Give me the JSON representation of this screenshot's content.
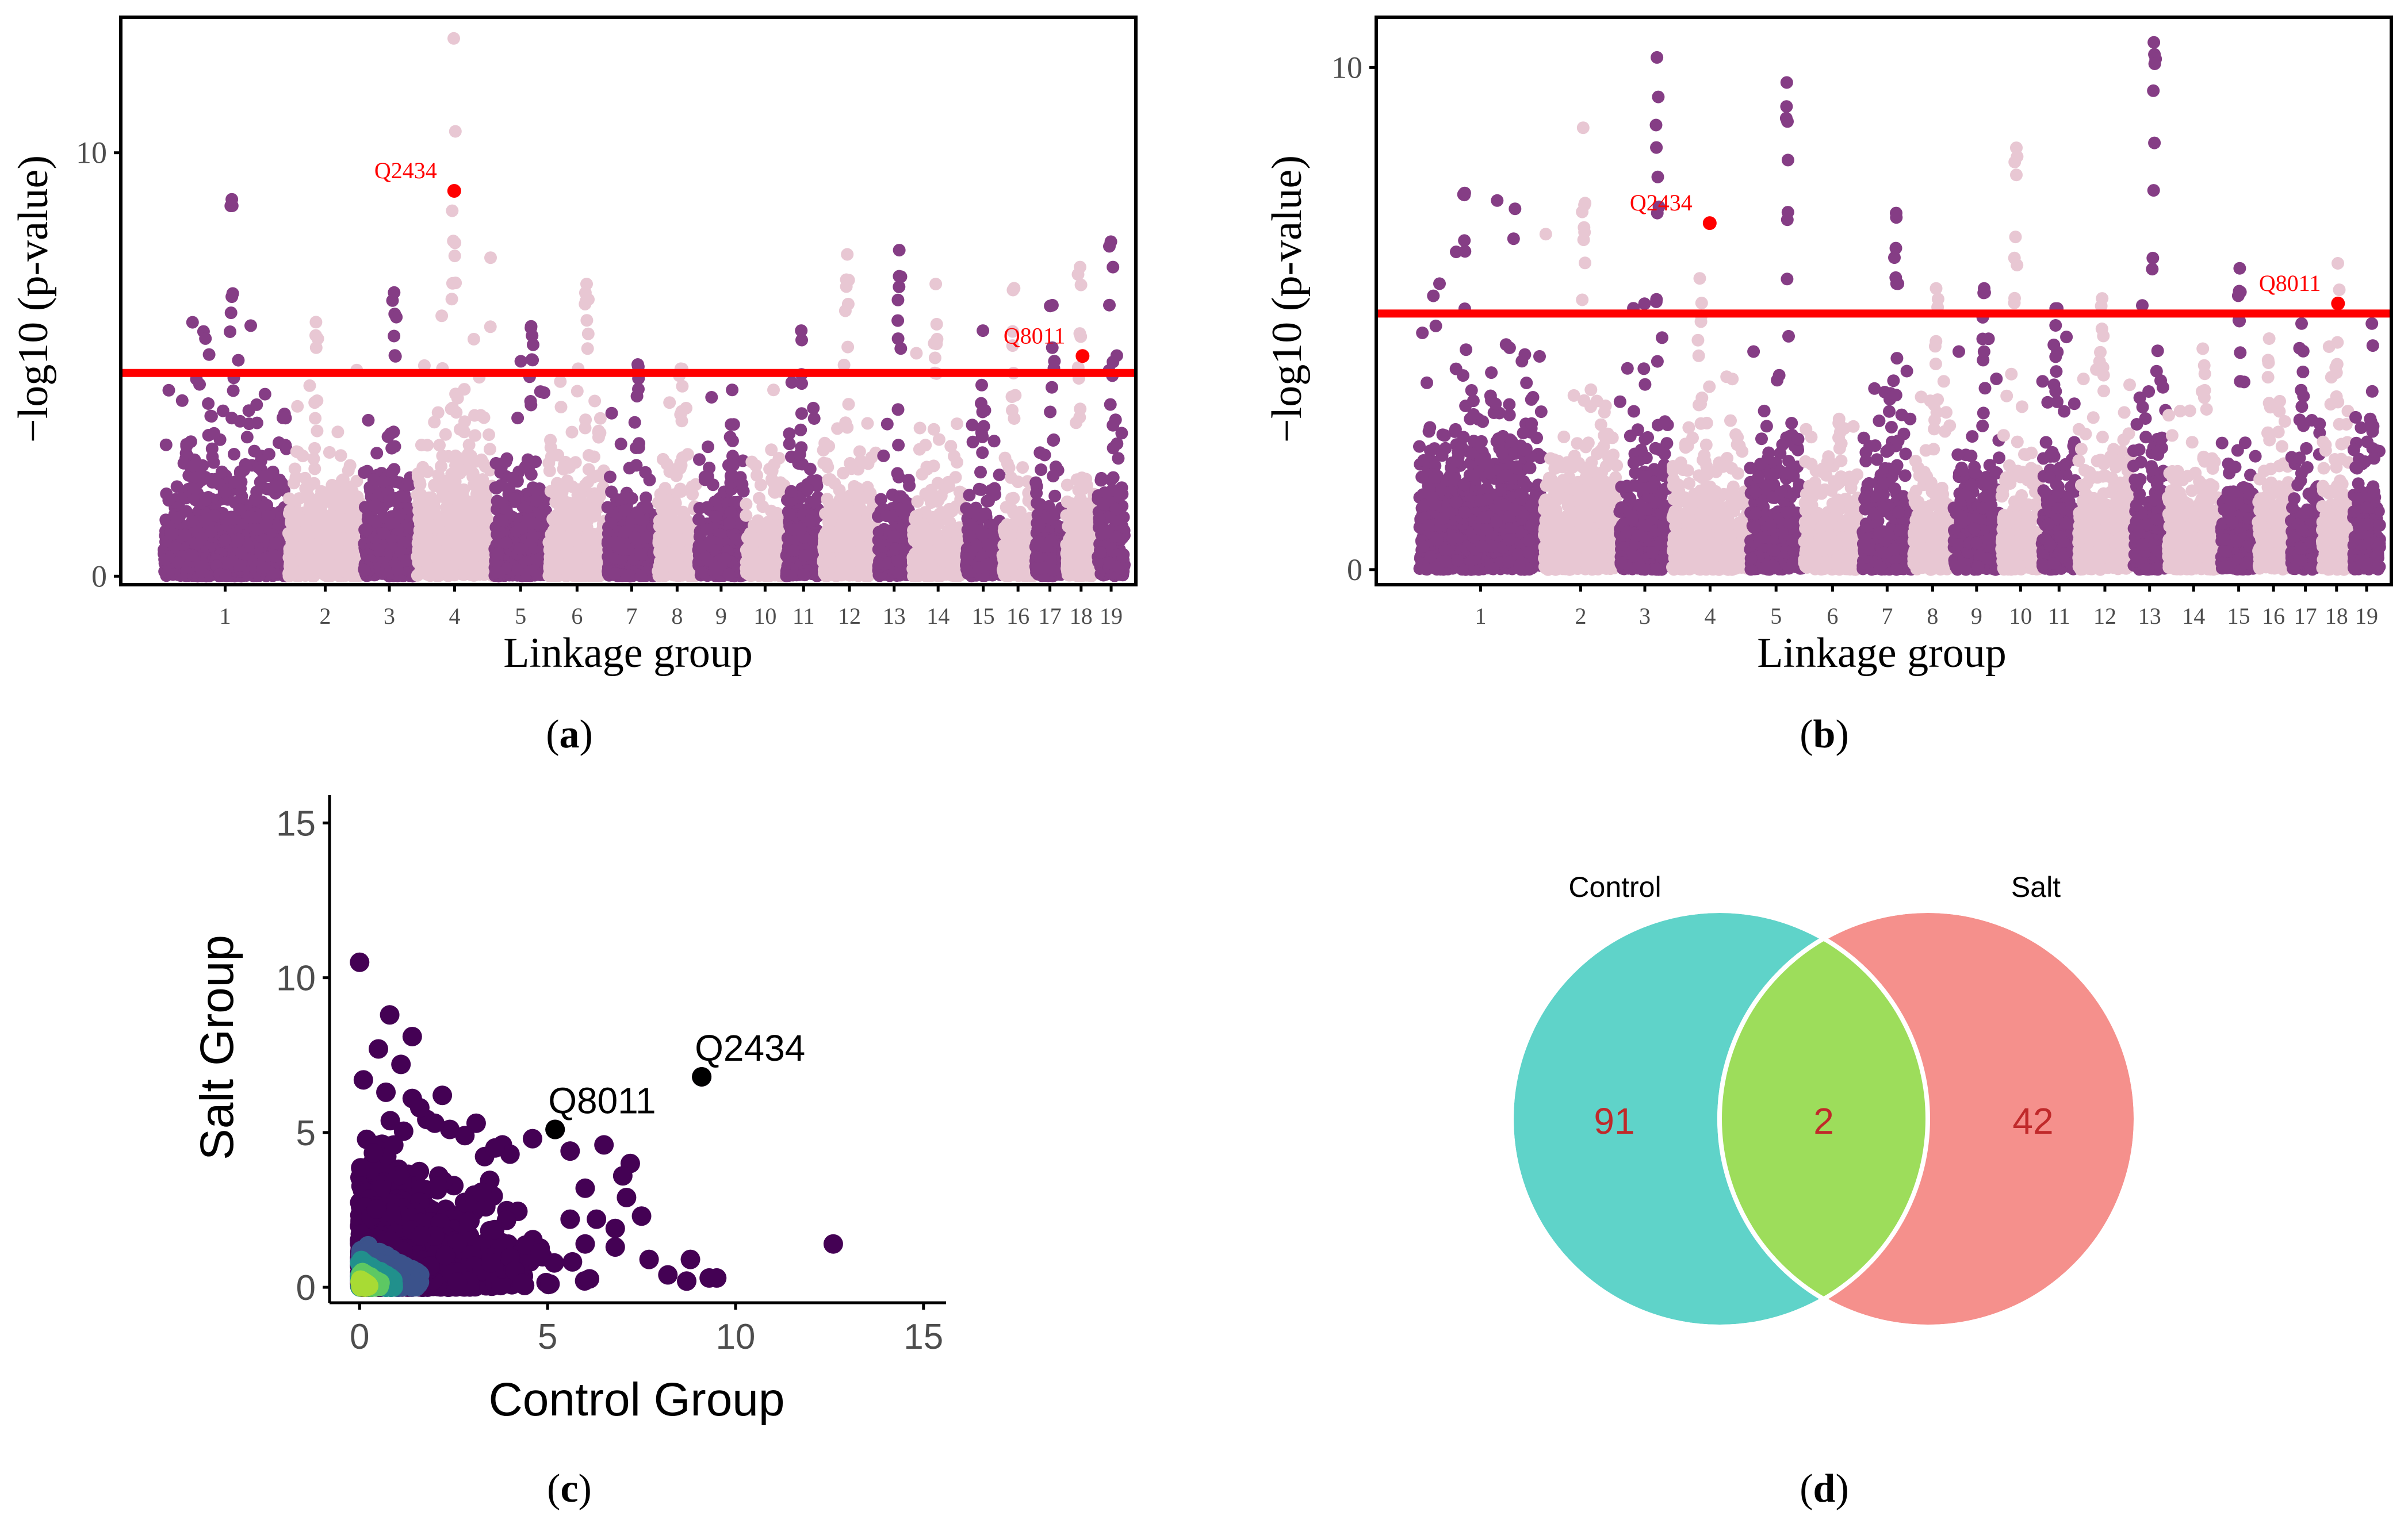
{
  "colors": {
    "dark": "#853d85",
    "light": "#e8c7d3",
    "threshold": "#ff0000",
    "highlight": "#ff0000",
    "venn_control": "#5fd3c9",
    "venn_salt": "#f5908c",
    "venn_overlap": "#9ddd5b",
    "venn_number": "#c0292a"
  },
  "chart_data": [
    {
      "id": "a",
      "type": "scatter",
      "subtype": "manhattan",
      "caption": "(a)",
      "caption_letter": "a",
      "xlabel": "Linkage group",
      "ylabel": "−log10 (p-value)",
      "yticks": [
        0,
        10
      ],
      "ylim": [
        -0.2,
        13.2
      ],
      "threshold": 4.8,
      "groups": [
        {
          "label": "1",
          "start": 0,
          "end": 16.7,
          "peak": 8.9,
          "tail": 1.6
        },
        {
          "label": "2",
          "start": 17,
          "end": 27,
          "peak": 6.0,
          "tail": 1.4
        },
        {
          "label": "3",
          "start": 27.3,
          "end": 34.2,
          "peak": 6.7,
          "tail": 1.4
        },
        {
          "label": "4",
          "start": 34.5,
          "end": 44.8,
          "peak": 12.7,
          "tail": 1.8
        },
        {
          "label": "5",
          "start": 45.1,
          "end": 52.2,
          "peak": 5.9,
          "tail": 1.5
        },
        {
          "label": "6",
          "start": 52.5,
          "end": 60.2,
          "peak": 6.9,
          "tail": 1.6
        },
        {
          "label": "7",
          "start": 60.5,
          "end": 67.1,
          "peak": 5.0,
          "tail": 1.2
        },
        {
          "label": "8",
          "start": 67.4,
          "end": 72.6,
          "peak": 4.9,
          "tail": 1.2
        },
        {
          "label": "9",
          "start": 72.9,
          "end": 79.1,
          "peak": 4.4,
          "tail": 1.1
        },
        {
          "label": "10",
          "start": 79.4,
          "end": 84.6,
          "peak": 4.4,
          "tail": 1.0
        },
        {
          "label": "11",
          "start": 84.9,
          "end": 89.6,
          "peak": 5.8,
          "tail": 1.5
        },
        {
          "label": "12",
          "start": 89.9,
          "end": 97.1,
          "peak": 7.6,
          "tail": 1.4
        },
        {
          "label": "13",
          "start": 97.4,
          "end": 101.8,
          "peak": 7.7,
          "tail": 1.2
        },
        {
          "label": "14",
          "start": 102.1,
          "end": 109.1,
          "peak": 6.9,
          "tail": 1.1
        },
        {
          "label": "15",
          "start": 109.4,
          "end": 114.1,
          "peak": 5.8,
          "tail": 1.0
        },
        {
          "label": "16",
          "start": 114.4,
          "end": 118.6,
          "peak": 6.8,
          "tail": 1.1
        },
        {
          "label": "17",
          "start": 118.9,
          "end": 122.8,
          "peak": 6.4,
          "tail": 1.1
        },
        {
          "label": "18",
          "start": 123.1,
          "end": 127.1,
          "peak": 7.3,
          "tail": 1.3
        },
        {
          "label": "19",
          "start": 127.4,
          "end": 131,
          "peak": 7.9,
          "tail": 1.4
        }
      ],
      "highlighted": [
        {
          "label": "Q2434",
          "x": 39.6,
          "y": 9.1
        },
        {
          "label": "Q8011",
          "x": 125.3,
          "y": 5.2
        }
      ]
    },
    {
      "id": "b",
      "type": "scatter",
      "subtype": "manhattan",
      "caption": "(b)",
      "caption_letter": "b",
      "xlabel": "Linkage group",
      "ylabel": "−log10 (p-value)",
      "yticks": [
        0,
        10
      ],
      "ylim": [
        -0.3,
        11.0
      ],
      "threshold": 5.1,
      "groups": [
        {
          "label": "1",
          "start": 0,
          "end": 16.7,
          "peak": 7.5,
          "tail": 1.7
        },
        {
          "label": "2",
          "start": 17,
          "end": 27,
          "peak": 8.8,
          "tail": 1.5
        },
        {
          "label": "3",
          "start": 27.3,
          "end": 34.2,
          "peak": 10.2,
          "tail": 1.5
        },
        {
          "label": "4",
          "start": 34.5,
          "end": 44.8,
          "peak": 5.8,
          "tail": 1.2
        },
        {
          "label": "5",
          "start": 45.1,
          "end": 52.2,
          "peak": 9.7,
          "tail": 1.4
        },
        {
          "label": "6",
          "start": 52.5,
          "end": 60.2,
          "peak": 3.0,
          "tail": 1.0
        },
        {
          "label": "7",
          "start": 60.5,
          "end": 67.1,
          "peak": 7.1,
          "tail": 1.3
        },
        {
          "label": "8",
          "start": 67.4,
          "end": 72.6,
          "peak": 5.6,
          "tail": 1.2
        },
        {
          "label": "9",
          "start": 72.9,
          "end": 79.1,
          "peak": 5.6,
          "tail": 1.2
        },
        {
          "label": "10",
          "start": 79.4,
          "end": 84.6,
          "peak": 8.4,
          "tail": 1.2
        },
        {
          "label": "11",
          "start": 84.9,
          "end": 89.6,
          "peak": 5.2,
          "tail": 1.3
        },
        {
          "label": "12",
          "start": 89.9,
          "end": 97.1,
          "peak": 5.4,
          "tail": 1.4
        },
        {
          "label": "13",
          "start": 97.4,
          "end": 101.8,
          "peak": 10.5,
          "tail": 1.6
        },
        {
          "label": "14",
          "start": 102.1,
          "end": 109.1,
          "peak": 4.4,
          "tail": 1.1
        },
        {
          "label": "15",
          "start": 109.4,
          "end": 114.1,
          "peak": 6.0,
          "tail": 1.1
        },
        {
          "label": "16",
          "start": 114.4,
          "end": 118.6,
          "peak": 4.6,
          "tail": 1.1
        },
        {
          "label": "17",
          "start": 118.9,
          "end": 122.8,
          "peak": 4.9,
          "tail": 1.1
        },
        {
          "label": "18",
          "start": 123.1,
          "end": 127.1,
          "peak": 6.1,
          "tail": 1.3
        },
        {
          "label": "19",
          "start": 127.4,
          "end": 131,
          "peak": 4.9,
          "tail": 1.3
        }
      ],
      "highlighted": [
        {
          "label": "Q2434",
          "x": 39.6,
          "y": 6.9
        },
        {
          "label": "Q8011",
          "x": 125.3,
          "y": 5.3
        }
      ]
    },
    {
      "id": "c",
      "type": "scatter",
      "subtype": "density",
      "caption": "(c)",
      "caption_letter": "c",
      "xlabel": "Control Group",
      "ylabel": "Salt Group",
      "xlim": [
        -0.8,
        15.6
      ],
      "ylim": [
        -0.5,
        15.9
      ],
      "xticks": [
        0,
        5,
        10,
        15
      ],
      "yticks": [
        0,
        5,
        10,
        15
      ],
      "density_colors": [
        "#440154",
        "#3b528b",
        "#21908c",
        "#5dc863",
        "#a8db34"
      ],
      "points": [
        [
          0.0,
          10.5
        ],
        [
          0.1,
          6.7
        ],
        [
          0.8,
          8.8
        ],
        [
          1.4,
          8.1
        ],
        [
          0.5,
          7.7
        ],
        [
          1.1,
          7.2
        ],
        [
          0.7,
          6.3
        ],
        [
          1.4,
          6.1
        ],
        [
          2.2,
          6.2
        ],
        [
          1.6,
          5.8
        ],
        [
          3.1,
          5.3
        ],
        [
          2.4,
          5.1
        ],
        [
          3.8,
          4.6
        ],
        [
          4.6,
          4.8
        ],
        [
          4.0,
          4.3
        ],
        [
          5.6,
          4.4
        ],
        [
          6.5,
          4.6
        ],
        [
          7.2,
          4.0
        ],
        [
          7.0,
          3.6
        ],
        [
          6.0,
          3.2
        ],
        [
          7.1,
          2.9
        ],
        [
          5.6,
          2.2
        ],
        [
          6.3,
          2.2
        ],
        [
          6.8,
          1.9
        ],
        [
          7.5,
          2.3
        ],
        [
          6.0,
          1.4
        ],
        [
          6.8,
          1.3
        ],
        [
          7.7,
          0.9
        ],
        [
          8.8,
          0.9
        ],
        [
          8.2,
          0.4
        ],
        [
          8.7,
          0.2
        ],
        [
          9.3,
          0.3
        ],
        [
          9.5,
          0.3
        ],
        [
          12.6,
          1.4
        ],
        [
          5.2,
          5.1
        ],
        [
          9.1,
          6.8
        ],
        [
          3.6,
          4.5
        ],
        [
          2.8,
          4.9
        ],
        [
          2.0,
          5.3
        ]
      ],
      "highlighted": [
        {
          "label": "Q8011",
          "x": 5.2,
          "y": 5.1
        },
        {
          "label": "Q2434",
          "x": 9.1,
          "y": 6.8
        }
      ]
    },
    {
      "id": "d",
      "type": "venn",
      "caption": "(d)",
      "caption_letter": "d",
      "sets": [
        {
          "name": "Control",
          "only": 91
        },
        {
          "name": "Salt",
          "only": 42
        }
      ],
      "overlap": 2
    }
  ]
}
